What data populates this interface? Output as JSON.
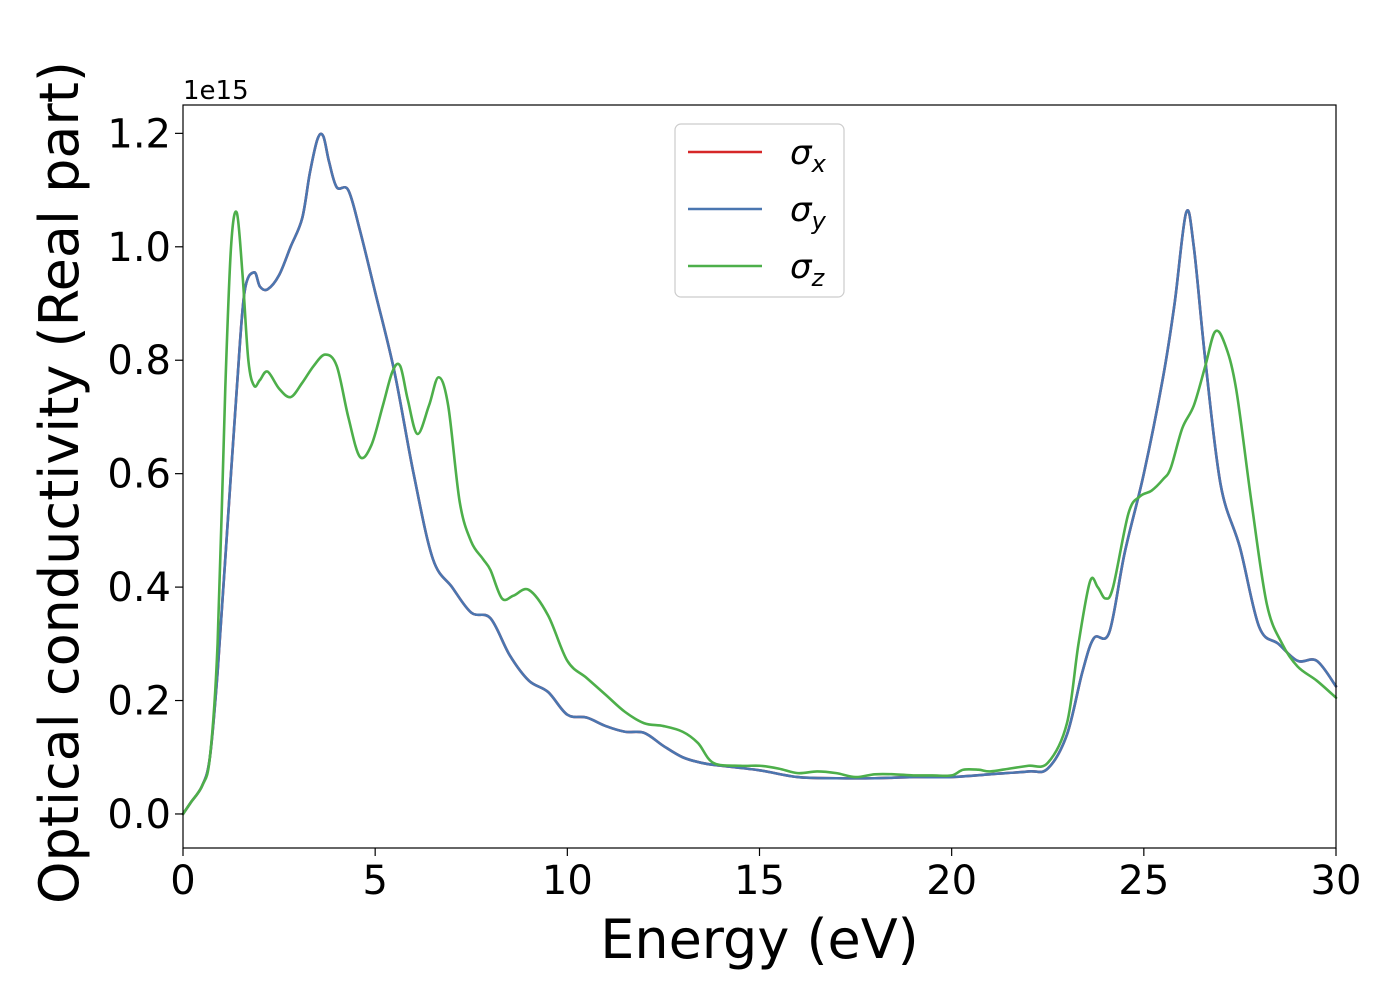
{
  "chart_data": {
    "type": "line",
    "title": "",
    "xlabel": "Energy (eV)",
    "ylabel": "Optical conductivity (Real part)",
    "y_offset_label": "1e15",
    "xlim": [
      0,
      30
    ],
    "ylim": [
      -0.06,
      1.25
    ],
    "x_ticks": [
      0,
      5,
      10,
      15,
      20,
      25,
      30
    ],
    "x_tick_labels": [
      "0",
      "5",
      "10",
      "15",
      "20",
      "25",
      "30"
    ],
    "y_ticks": [
      0.0,
      0.2,
      0.4,
      0.6,
      0.8,
      1.0,
      1.2
    ],
    "y_tick_labels": [
      "0.0",
      "0.2",
      "0.4",
      "0.6",
      "0.8",
      "1.0",
      "1.2"
    ],
    "grid": false,
    "legend_position": "upper-center",
    "series": [
      {
        "name": "σx",
        "symbol": "σ",
        "sub": "x",
        "color": "#d62728",
        "x": [
          0,
          0.2,
          0.5,
          0.7,
          0.9,
          1.1,
          1.4,
          1.6,
          1.85,
          2.0,
          2.2,
          2.5,
          2.8,
          3.1,
          3.3,
          3.5,
          3.65,
          3.8,
          4.0,
          4.3,
          4.6,
          5.0,
          5.5,
          6.0,
          6.5,
          7.0,
          7.5,
          8.0,
          8.5,
          9.0,
          9.5,
          10.0,
          10.5,
          11.0,
          11.5,
          12.0,
          12.5,
          13.0,
          13.5,
          14.0,
          15.0,
          16.0,
          17.0,
          18.0,
          19.0,
          20.0,
          21.0,
          22.0,
          22.5,
          23.0,
          23.4,
          23.7,
          24.1,
          24.5,
          25.0,
          25.5,
          25.8,
          26.1,
          26.3,
          26.6,
          27.0,
          27.5,
          28.0,
          28.5,
          29.0,
          29.5,
          30.0
        ],
        "y": [
          0.0,
          0.02,
          0.05,
          0.1,
          0.25,
          0.45,
          0.75,
          0.92,
          0.955,
          0.93,
          0.925,
          0.95,
          1.0,
          1.05,
          1.13,
          1.19,
          1.195,
          1.15,
          1.105,
          1.1,
          1.03,
          0.92,
          0.78,
          0.6,
          0.45,
          0.4,
          0.355,
          0.345,
          0.28,
          0.235,
          0.215,
          0.175,
          0.17,
          0.155,
          0.145,
          0.143,
          0.12,
          0.1,
          0.09,
          0.085,
          0.077,
          0.065,
          0.063,
          0.063,
          0.065,
          0.065,
          0.07,
          0.075,
          0.08,
          0.14,
          0.25,
          0.31,
          0.32,
          0.46,
          0.6,
          0.77,
          0.9,
          1.06,
          1.0,
          0.8,
          0.58,
          0.47,
          0.33,
          0.3,
          0.27,
          0.27,
          0.225
        ]
      },
      {
        "name": "σy",
        "symbol": "σ",
        "sub": "y",
        "color": "#4a76b0",
        "x": [
          0,
          0.2,
          0.5,
          0.7,
          0.9,
          1.1,
          1.4,
          1.6,
          1.85,
          2.0,
          2.2,
          2.5,
          2.8,
          3.1,
          3.3,
          3.5,
          3.65,
          3.8,
          4.0,
          4.3,
          4.6,
          5.0,
          5.5,
          6.0,
          6.5,
          7.0,
          7.5,
          8.0,
          8.5,
          9.0,
          9.5,
          10.0,
          10.5,
          11.0,
          11.5,
          12.0,
          12.5,
          13.0,
          13.5,
          14.0,
          15.0,
          16.0,
          17.0,
          18.0,
          19.0,
          20.0,
          21.0,
          22.0,
          22.5,
          23.0,
          23.4,
          23.7,
          24.1,
          24.5,
          25.0,
          25.5,
          25.8,
          26.1,
          26.3,
          26.6,
          27.0,
          27.5,
          28.0,
          28.5,
          29.0,
          29.5,
          30.0
        ],
        "y": [
          0.0,
          0.02,
          0.05,
          0.1,
          0.25,
          0.45,
          0.75,
          0.92,
          0.955,
          0.93,
          0.925,
          0.95,
          1.0,
          1.05,
          1.13,
          1.19,
          1.195,
          1.15,
          1.105,
          1.1,
          1.03,
          0.92,
          0.78,
          0.6,
          0.45,
          0.4,
          0.355,
          0.345,
          0.28,
          0.235,
          0.215,
          0.175,
          0.17,
          0.155,
          0.145,
          0.143,
          0.12,
          0.1,
          0.09,
          0.085,
          0.077,
          0.065,
          0.063,
          0.063,
          0.065,
          0.065,
          0.07,
          0.075,
          0.08,
          0.14,
          0.25,
          0.31,
          0.32,
          0.46,
          0.6,
          0.77,
          0.9,
          1.06,
          1.0,
          0.8,
          0.58,
          0.47,
          0.33,
          0.3,
          0.27,
          0.27,
          0.225
        ]
      },
      {
        "name": "σz",
        "symbol": "σ",
        "sub": "z",
        "color": "#4daf4a",
        "x": [
          0,
          0.2,
          0.5,
          0.7,
          0.9,
          1.1,
          1.25,
          1.4,
          1.55,
          1.7,
          1.85,
          2.0,
          2.2,
          2.5,
          2.8,
          3.1,
          3.4,
          3.7,
          4.0,
          4.3,
          4.6,
          4.9,
          5.2,
          5.45,
          5.65,
          5.85,
          6.1,
          6.4,
          6.65,
          6.9,
          7.2,
          7.5,
          7.8,
          8.0,
          8.3,
          8.6,
          9.0,
          9.5,
          10.0,
          10.5,
          11.0,
          11.5,
          12.0,
          12.5,
          13.0,
          13.4,
          13.8,
          14.5,
          15.0,
          15.5,
          16.0,
          16.5,
          17.0,
          17.5,
          18.0,
          18.5,
          19.0,
          19.5,
          20.0,
          20.3,
          20.7,
          21.0,
          21.5,
          22.0,
          22.5,
          23.0,
          23.3,
          23.6,
          23.8,
          24.0,
          24.2,
          24.6,
          24.9,
          25.2,
          25.5,
          25.7,
          26.0,
          26.3,
          26.6,
          26.85,
          27.1,
          27.4,
          27.8,
          28.2,
          28.6,
          29.0,
          29.5,
          30.0
        ],
        "y": [
          0.0,
          0.02,
          0.05,
          0.1,
          0.3,
          0.75,
          1.0,
          1.06,
          0.95,
          0.8,
          0.755,
          0.765,
          0.78,
          0.75,
          0.735,
          0.76,
          0.79,
          0.81,
          0.79,
          0.7,
          0.63,
          0.65,
          0.72,
          0.78,
          0.79,
          0.73,
          0.67,
          0.72,
          0.77,
          0.72,
          0.55,
          0.48,
          0.45,
          0.43,
          0.38,
          0.385,
          0.395,
          0.35,
          0.27,
          0.24,
          0.21,
          0.18,
          0.16,
          0.155,
          0.145,
          0.125,
          0.09,
          0.085,
          0.085,
          0.08,
          0.072,
          0.075,
          0.072,
          0.065,
          0.07,
          0.07,
          0.068,
          0.068,
          0.068,
          0.078,
          0.078,
          0.075,
          0.08,
          0.085,
          0.09,
          0.16,
          0.3,
          0.41,
          0.4,
          0.38,
          0.4,
          0.53,
          0.56,
          0.57,
          0.59,
          0.61,
          0.68,
          0.72,
          0.79,
          0.85,
          0.83,
          0.75,
          0.55,
          0.37,
          0.3,
          0.26,
          0.235,
          0.205
        ]
      }
    ]
  }
}
